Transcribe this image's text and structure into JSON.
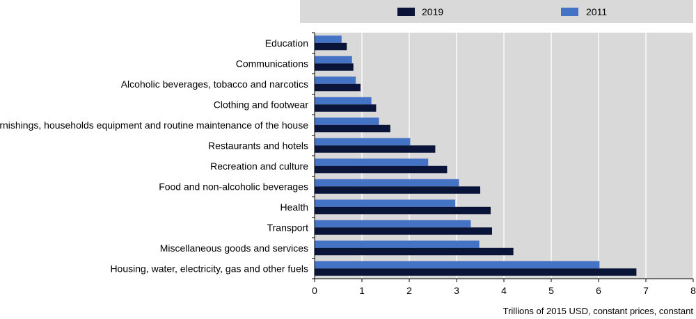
{
  "chart_data": {
    "type": "bar",
    "orientation": "horizontal",
    "categories": [
      "Education",
      "Communications",
      "Alcoholic beverages, tobacco and narcotics",
      "Clothing and footwear",
      "Furnishings, households equipment and routine maintenance of the house",
      "Restaurants and hotels",
      "Recreation and culture",
      "Food and non-alcoholic beverages",
      "Health",
      "Transport",
      "Miscellaneous goods and services",
      "Housing, water, electricity, gas and other fuels"
    ],
    "series": [
      {
        "name": "2019",
        "color": "#0a1438",
        "values": [
          0.68,
          0.82,
          0.97,
          1.3,
          1.6,
          2.55,
          2.8,
          3.5,
          3.72,
          3.75,
          4.2,
          6.8
        ]
      },
      {
        "name": "2011",
        "color": "#4472c4",
        "values": [
          0.57,
          0.79,
          0.87,
          1.2,
          1.36,
          2.02,
          2.4,
          3.05,
          2.97,
          3.3,
          3.48,
          6.02
        ]
      }
    ],
    "xlim": [
      0,
      8
    ],
    "xticks": [
      "0",
      "1",
      "2",
      "3",
      "4",
      "5",
      "6",
      "7",
      "8"
    ],
    "xlabel": "Trillions of 2015 USD, constant prices, constant",
    "ylabel": "",
    "title": "",
    "grid": true,
    "legend_position": "top",
    "plot_background": "#d9d9d9"
  }
}
